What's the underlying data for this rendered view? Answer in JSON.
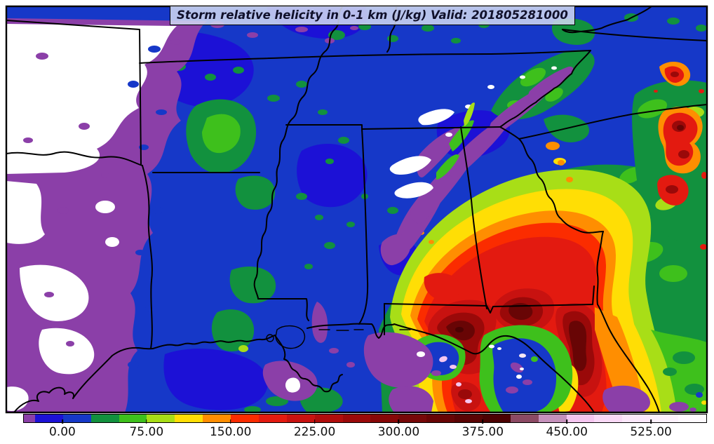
{
  "title_bar": {
    "text": "Storm relative helicity in 0-1 km (J/kg) Valid: 201805281000"
  },
  "colorbar": {
    "ticks": [
      {
        "value": 0,
        "label": "0.00"
      },
      {
        "value": 75,
        "label": "75.00"
      },
      {
        "value": 150,
        "label": "150.00"
      },
      {
        "value": 225,
        "label": "225.00"
      },
      {
        "value": 300,
        "label": "300.00"
      },
      {
        "value": 375,
        "label": "375.00"
      },
      {
        "value": 450,
        "label": "450.00"
      },
      {
        "value": 525,
        "label": "525.00"
      }
    ],
    "segments": [
      {
        "from": -35,
        "to": -25,
        "color": "#8B3FA8"
      },
      {
        "from": -25,
        "to": 0,
        "color": "#1C11D6"
      },
      {
        "from": 0,
        "to": 25,
        "color": "#1638C8"
      },
      {
        "from": 25,
        "to": 50,
        "color": "#12913E"
      },
      {
        "from": 50,
        "to": 75,
        "color": "#3EC01C"
      },
      {
        "from": 75,
        "to": 100,
        "color": "#A8DE17"
      },
      {
        "from": 100,
        "to": 125,
        "color": "#FFDE05"
      },
      {
        "from": 125,
        "to": 150,
        "color": "#FF8E01"
      },
      {
        "from": 150,
        "to": 175,
        "color": "#FB2C00"
      },
      {
        "from": 175,
        "to": 200,
        "color": "#E31A10"
      },
      {
        "from": 200,
        "to": 225,
        "color": "#C81210"
      },
      {
        "from": 225,
        "to": 250,
        "color": "#B00D0C"
      },
      {
        "from": 250,
        "to": 275,
        "color": "#9A0909"
      },
      {
        "from": 275,
        "to": 300,
        "color": "#870707"
      },
      {
        "from": 300,
        "to": 325,
        "color": "#770808"
      },
      {
        "from": 325,
        "to": 350,
        "color": "#680505"
      },
      {
        "from": 350,
        "to": 375,
        "color": "#5A0404"
      },
      {
        "from": 375,
        "to": 400,
        "color": "#4C0203"
      },
      {
        "from": 400,
        "to": 425,
        "color": "#8C4A64"
      },
      {
        "from": 425,
        "to": 450,
        "color": "#C591BB"
      },
      {
        "from": 450,
        "to": 475,
        "color": "#F5C6F0"
      },
      {
        "from": 475,
        "to": 500,
        "color": "#F9D9F6"
      },
      {
        "from": 500,
        "to": 525,
        "color": "#FBE7FA"
      },
      {
        "from": 525,
        "to": 550,
        "color": "#FDF1FC"
      },
      {
        "from": 550,
        "to": 575,
        "color": "#FEFAFE"
      }
    ]
  },
  "chart_data": {
    "type": "heatmap",
    "title": "Storm relative helicity in 0-1 km (J/kg) Valid: 201805281000",
    "variable": "storm relative helicity 0-1 km",
    "units": "J/kg",
    "valid_time": "201805281000",
    "colorbar_tick_values": [
      0,
      75,
      150,
      225,
      300,
      375,
      450,
      525
    ],
    "contour_interval": 25,
    "value_range_shown": [
      -35,
      575
    ],
    "palette": [
      "#8B3FA8",
      "#1C11D6",
      "#1638C8",
      "#12913E",
      "#3EC01C",
      "#A8DE17",
      "#FFDE05",
      "#FF8E01",
      "#FB2C00",
      "#E31A10",
      "#C81210",
      "#B00D0C",
      "#9A0909",
      "#870707",
      "#770808",
      "#680505",
      "#5A0404",
      "#4C0203",
      "#8C4A64",
      "#C591BB",
      "#F5C6F0",
      "#F9D9F6",
      "#FBE7FA",
      "#FDF1FC",
      "#FEFAFE"
    ],
    "map_region": "Southeastern United States (east Texas to the Carolinas, Gulf Coast to Kentucky)",
    "legend_position": "bottom",
    "features": [
      {
        "area": "east Texas and lower Arkansas (west edge)",
        "value": "below 0 J/kg",
        "appearance": "white with purple fringe"
      },
      {
        "area": "Mississippi and Tennessee valleys background",
        "value": "0-75 J/kg",
        "appearance": "blue with scattered green patches"
      },
      {
        "area": "SW-NE band over Mississippi/Alabama into Tennessee",
        "value": "below 0 J/kg streaks",
        "appearance": "purple and white streaks with green slivers"
      },
      {
        "area": "Georgia and south Alabama",
        "value": "75-150 J/kg",
        "appearance": "yellow-green to orange ring"
      },
      {
        "area": "Florida Panhandle / Big Bend and adjacent Gulf (tropical system)",
        "value": "150-400+ J/kg, local maxima above 450",
        "appearance": "red to dark maroon cores with pale pink maxima and a blue-purple low-helicity eye"
      },
      {
        "area": "Carolinas coastal plain (upper right)",
        "value": "150-300 J/kg pockets",
        "appearance": "red blobs embedded in green"
      },
      {
        "area": "Florida peninsula (lower right)",
        "value": "75-175 J/kg bands",
        "appearance": "orange-yellow-green bands along coast"
      }
    ]
  }
}
